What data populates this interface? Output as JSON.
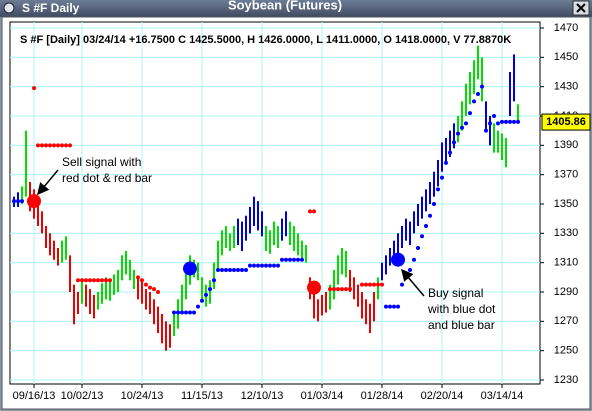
{
  "window": {
    "title": "S #F Daily"
  },
  "chart_data": {
    "type": "ohlc",
    "title": "Soybean (Futures)",
    "info": "S #F [Daily] 03/24/14 +16.7500 C 1425.5000, H 1426.0000, L 1411.0000, O 1418.0000, V 77.8870K",
    "categories": [
      null,
      null,
      null,
      null,
      null,
      "09/16/13",
      null,
      null,
      null,
      null,
      null,
      null,
      null,
      null,
      null,
      null,
      null,
      "10/02/13",
      null,
      null,
      null,
      null,
      null,
      null,
      null,
      null,
      null,
      null,
      null,
      null,
      null,
      null,
      "10/24/13",
      null,
      null,
      null,
      null,
      null,
      null,
      null,
      null,
      null,
      null,
      null,
      null,
      null,
      null,
      "11/15/13",
      null,
      null,
      null,
      null,
      null,
      null,
      null,
      null,
      null,
      null,
      null,
      null,
      null,
      null,
      "12/10/13",
      null,
      null,
      null,
      null,
      null,
      null,
      null,
      null,
      null,
      null,
      null,
      null,
      null,
      null,
      "01/03/14",
      null,
      null,
      null,
      null,
      null,
      null,
      null,
      null,
      null,
      null,
      null,
      null,
      null,
      null,
      "01/28/14",
      null,
      null,
      null,
      null,
      null,
      null,
      null,
      null,
      null,
      null,
      null,
      null,
      null,
      null,
      "02/20/14",
      null,
      null,
      null,
      null,
      null,
      null,
      null,
      null,
      null,
      null,
      null,
      null,
      null,
      null,
      "03/14/14",
      null,
      null,
      null,
      null
    ],
    "high": [
      1355,
      1358,
      1362,
      1400,
      1365,
      1360,
      1355,
      1345,
      1335,
      1330,
      1325,
      1320,
      1325,
      1328,
      1315,
      1295,
      1290,
      1298,
      1295,
      1292,
      1288,
      1290,
      1296,
      1300,
      1298,
      1302,
      1305,
      1315,
      1318,
      1312,
      1305,
      1300,
      1298,
      1292,
      1290,
      1285,
      1280,
      1275,
      1270,
      1268,
      1275,
      1285,
      1295,
      1305,
      1315,
      1312,
      1310,
      1300,
      1295,
      1298,
      1310,
      1325,
      1332,
      1335,
      1330,
      1335,
      1340,
      1338,
      1342,
      1348,
      1355,
      1352,
      1345,
      1335,
      1332,
      1338,
      1335,
      1340,
      1345,
      1338,
      1335,
      1330,
      1325,
      1322,
      1300,
      1290,
      1285,
      1288,
      1290,
      1295,
      1305,
      1315,
      1320,
      1318,
      1305,
      1300,
      1295,
      1290,
      1285,
      1282,
      1290,
      1300,
      1310,
      1315,
      1320,
      1325,
      1330,
      1335,
      1340,
      1338,
      1345,
      1350,
      1355,
      1360,
      1365,
      1372,
      1380,
      1392,
      1395,
      1400,
      1405,
      1410,
      1420,
      1432,
      1440,
      1448,
      1458,
      1450,
      1420,
      1410,
      1405,
      1400,
      1398,
      1395,
      1440,
      1452,
      1418
    ],
    "low": [
      1348,
      1348,
      1350,
      1355,
      1345,
      1340,
      1335,
      1330,
      1320,
      1315,
      1312,
      1308,
      1310,
      1312,
      1290,
      1268,
      1275,
      1282,
      1280,
      1275,
      1272,
      1278,
      1282,
      1285,
      1284,
      1288,
      1290,
      1298,
      1302,
      1298,
      1292,
      1285,
      1282,
      1278,
      1275,
      1268,
      1262,
      1255,
      1250,
      1252,
      1260,
      1265,
      1275,
      1285,
      1295,
      1300,
      1298,
      1285,
      1280,
      1282,
      1292,
      1305,
      1315,
      1320,
      1318,
      1320,
      1322,
      1318,
      1325,
      1330,
      1335,
      1332,
      1328,
      1318,
      1316,
      1322,
      1320,
      1325,
      1328,
      1322,
      1318,
      1315,
      1312,
      1310,
      1285,
      1272,
      1270,
      1274,
      1276,
      1278,
      1285,
      1295,
      1302,
      1300,
      1290,
      1285,
      1280,
      1272,
      1268,
      1262,
      1270,
      1285,
      1298,
      1302,
      1308,
      1312,
      1315,
      1320,
      1325,
      1322,
      1330,
      1335,
      1340,
      1345,
      1350,
      1355,
      1362,
      1372,
      1378,
      1382,
      1388,
      1392,
      1400,
      1410,
      1418,
      1425,
      1435,
      1420,
      1400,
      1390,
      1385,
      1385,
      1380,
      1375,
      1410,
      1420,
      1405
    ],
    "bar_colors": [
      "#0000dd",
      "#0000dd",
      "#00e000",
      "#00e000",
      "#ee0000",
      "#ee0000",
      "#ee0000",
      "#ee0000",
      "#ee0000",
      "#ee0000",
      "#ee0000",
      "#ee0000",
      "#00e000",
      "#00e000",
      "#ee0000",
      "#ee0000",
      "#ee0000",
      "#00e000",
      "#ee0000",
      "#ee0000",
      "#ee0000",
      "#00e000",
      "#00e000",
      "#00e000",
      "#00e000",
      "#00e000",
      "#00e000",
      "#00e000",
      "#00e000",
      "#00e000",
      "#00e000",
      "#ee0000",
      "#ee0000",
      "#ee0000",
      "#ee0000",
      "#ee0000",
      "#ee0000",
      "#ee0000",
      "#ee0000",
      "#ee0000",
      "#00e000",
      "#00e000",
      "#00e000",
      "#00e000",
      "#00e000",
      "#00e000",
      "#00e000",
      "#00e000",
      "#00e000",
      "#00e000",
      "#00e000",
      "#00e000",
      "#00e000",
      "#00e000",
      "#00e000",
      "#00e000",
      "#0000dd",
      "#0000dd",
      "#0000dd",
      "#0000dd",
      "#0000dd",
      "#0000dd",
      "#0000dd",
      "#00e000",
      "#00e000",
      "#00e000",
      "#00e000",
      "#0000dd",
      "#0000dd",
      "#00e000",
      "#00e000",
      "#00e000",
      "#00e000",
      "#00e000",
      "#ee0000",
      "#ee0000",
      "#ee0000",
      "#ee0000",
      "#ee0000",
      "#00e000",
      "#00e000",
      "#00e000",
      "#00e000",
      "#00e000",
      "#ee0000",
      "#ee0000",
      "#ee0000",
      "#ee0000",
      "#ee0000",
      "#ee0000",
      "#ee0000",
      "#00e000",
      "#0000dd",
      "#0000dd",
      "#0000dd",
      "#0000dd",
      "#0000dd",
      "#0000dd",
      "#0000dd",
      "#0000dd",
      "#0000dd",
      "#0000dd",
      "#0000dd",
      "#0000dd",
      "#0000dd",
      "#0000dd",
      "#0000dd",
      "#0000dd",
      "#0000dd",
      "#0000dd",
      "#0000dd",
      "#00e000",
      "#00e000",
      "#00e000",
      "#00e000",
      "#00e000",
      "#00e000",
      "#00e000",
      "#0000dd",
      "#0000dd",
      "#00e000",
      "#00e000",
      "#00e000",
      "#00e000",
      "#0000dd",
      "#0000dd",
      "#00e000"
    ],
    "dots": [
      {
        "color": "#ff0000",
        "values": [
          null,
          null,
          null,
          null,
          null,
          1429,
          1390,
          1390,
          1390,
          1390,
          1390,
          1390,
          1390,
          1390,
          1390,
          null,
          1298,
          1298,
          1298,
          1298,
          1298,
          1298,
          1298,
          1298,
          1298,
          null,
          null,
          null,
          null,
          null,
          null,
          1300,
          1298,
          1295,
          1293,
          1292,
          1290,
          null,
          null,
          null,
          null,
          null,
          null,
          null,
          null,
          null,
          null,
          null,
          null,
          null,
          null,
          null,
          null,
          null,
          null,
          null,
          null,
          null,
          null,
          null,
          null,
          null,
          null,
          null,
          null,
          null,
          null,
          null,
          null,
          null,
          null,
          null,
          null,
          null,
          1345,
          1345,
          null,
          null,
          null,
          1292,
          1292,
          1292,
          1292,
          1292,
          1292,
          null,
          null,
          1295,
          1295,
          1295,
          1295,
          1295,
          1295,
          null,
          null,
          null,
          null,
          null,
          null,
          null,
          null,
          null,
          null,
          null,
          null,
          null,
          null,
          null,
          null,
          null,
          null,
          null,
          null,
          null,
          null,
          null,
          null,
          null,
          null,
          null,
          null,
          null,
          null,
          null,
          null,
          null,
          null
        ]
      },
      {
        "color": "#0000ff",
        "values": [
          1352,
          1352,
          1352,
          null,
          null,
          null,
          null,
          null,
          null,
          null,
          null,
          null,
          null,
          null,
          null,
          null,
          null,
          null,
          null,
          null,
          null,
          null,
          null,
          null,
          null,
          null,
          null,
          null,
          null,
          null,
          null,
          null,
          null,
          null,
          null,
          null,
          null,
          null,
          null,
          null,
          1276,
          1276,
          1276,
          1276,
          1276,
          1276,
          1280,
          1284,
          1288,
          1292,
          1298,
          1305,
          1305,
          1305,
          1305,
          1305,
          1305,
          1305,
          1305,
          1308,
          1308,
          1308,
          1308,
          1308,
          1308,
          1308,
          1308,
          1312,
          1312,
          1312,
          1312,
          1312,
          1312,
          null,
          null,
          null,
          null,
          null,
          null,
          null,
          null,
          null,
          null,
          null,
          null,
          null,
          null,
          null,
          null,
          null,
          null,
          null,
          null,
          1280,
          1280,
          1280,
          1280,
          1295,
          1300,
          1305,
          1312,
          1320,
          1328,
          1335,
          1342,
          1350,
          1360,
          1368,
          1378,
          1385,
          1392,
          1398,
          1402,
          1405,
          1412,
          1420,
          1425,
          1430,
          1400,
          1405,
          1410,
          1405,
          1406,
          1406,
          1406,
          1406,
          1406
        ]
      }
    ],
    "signals": [
      {
        "color": "#ff0000",
        "values": [
          null,
          null,
          null,
          null,
          null,
          1352,
          null,
          null,
          null,
          null,
          null,
          null,
          null,
          null,
          null,
          null,
          null,
          null,
          null,
          null,
          null,
          null,
          null,
          null,
          null,
          null,
          null,
          null,
          null,
          null,
          null,
          null,
          null,
          null,
          null,
          null,
          null,
          null,
          null,
          null,
          null,
          null,
          null,
          null,
          null,
          null,
          null,
          null,
          null,
          null,
          null,
          null,
          null,
          null,
          null,
          null,
          null,
          null,
          null,
          null,
          null,
          null,
          null,
          null,
          null,
          null,
          null,
          null,
          null,
          null,
          null,
          null,
          null,
          null,
          null,
          1293,
          null,
          null,
          null,
          null,
          null,
          null,
          null,
          null,
          null,
          null,
          null,
          null,
          null,
          null,
          null,
          null,
          null,
          null,
          null,
          null,
          null,
          null,
          null,
          null,
          null,
          null,
          null,
          null,
          null,
          null,
          null,
          null,
          null,
          null,
          null,
          null,
          null,
          null,
          null,
          null,
          null,
          null,
          null,
          null,
          null,
          null,
          null,
          null,
          null,
          null,
          null
        ]
      },
      {
        "color": "#0000ff",
        "values": [
          null,
          null,
          null,
          null,
          null,
          null,
          null,
          null,
          null,
          null,
          null,
          null,
          null,
          null,
          null,
          null,
          null,
          null,
          null,
          null,
          null,
          null,
          null,
          null,
          null,
          null,
          null,
          null,
          null,
          null,
          null,
          null,
          null,
          null,
          null,
          null,
          null,
          null,
          null,
          null,
          null,
          null,
          null,
          null,
          1306,
          null,
          null,
          null,
          null,
          null,
          null,
          null,
          null,
          null,
          null,
          null,
          null,
          null,
          null,
          null,
          null,
          null,
          null,
          null,
          null,
          null,
          null,
          null,
          null,
          null,
          null,
          null,
          null,
          null,
          null,
          null,
          null,
          null,
          null,
          null,
          null,
          null,
          null,
          null,
          null,
          null,
          null,
          null,
          null,
          null,
          null,
          null,
          null,
          null,
          null,
          null,
          1312,
          null,
          null,
          null,
          null,
          null,
          null,
          null,
          null,
          null,
          null,
          null,
          null,
          null,
          null,
          null,
          null,
          null,
          null,
          null,
          null,
          null,
          null,
          null,
          null,
          null,
          null,
          null,
          null,
          null,
          null
        ]
      }
    ],
    "ylim": [
      1230,
      1470
    ],
    "yticks": [
      1230,
      1250,
      1270,
      1290,
      1310,
      1330,
      1350,
      1370,
      1390,
      1410,
      1430,
      1450,
      1470
    ],
    "grid": true,
    "last_price": 1405.86,
    "annotations": [
      {
        "lines": [
          "Sell signal with",
          "red dot & red bar"
        ]
      },
      {
        "lines": [
          "Buy signal",
          "with blue dot",
          "and blue bar"
        ]
      }
    ]
  }
}
